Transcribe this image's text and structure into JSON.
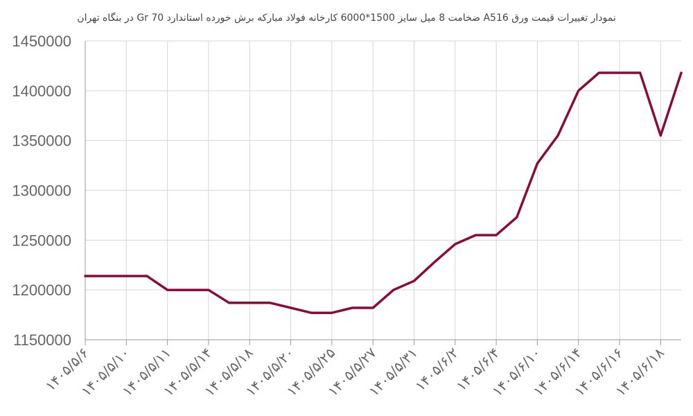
{
  "chart_data": {
    "type": "line",
    "title": "نمودار تغییرات قیمت ورق A516 ضخامت 8 میل سایز 1500*6000 کارخانه فولاد مبارکه برش خورده استاندارد Gr 70 در بنگاه تهران",
    "xlabel": "",
    "ylabel": "",
    "ylim": [
      1150000,
      1450000
    ],
    "yticks": [
      1150000,
      1200000,
      1250000,
      1300000,
      1350000,
      1400000,
      1450000
    ],
    "y_tick_labels": [
      "1150000",
      "1200000",
      "1250000",
      "1300000",
      "1350000",
      "1400000",
      "1450000"
    ],
    "x_tick_labels": [
      "۱۴۰۵/۵/۶",
      "۱۴۰۵/۵/۱۰",
      "۱۴۰۵/۵/۱۱",
      "۱۴۰۵/۵/۱۴",
      "۱۴۰۵/۵/۱۸",
      "۱۴۰۵/۵/۲۰",
      "۱۴۰۵/۵/۲۵",
      "۱۴۰۵/۵/۲۷",
      "۱۴۰۵/۵/۳۱",
      "۱۴۰۵/۶/۲",
      "۱۴۰۵/۶/۴",
      "۱۴۰۵/۶/۱۰",
      "۱۴۰۵/۶/۱۴",
      "۱۴۰۵/۶/۱۶",
      "۱۴۰۵/۶/۱۸"
    ],
    "x_tick_every": 2,
    "grid": true,
    "legend": "none",
    "series": [
      {
        "color": "#8b0a3a",
        "values": [
          1214000,
          1214000,
          1214000,
          1214000,
          1200000,
          1200000,
          1200000,
          1187000,
          1187000,
          1187000,
          1182000,
          1177000,
          1177000,
          1182000,
          1182000,
          1200000,
          1209000,
          1228000,
          1246000,
          1255000,
          1255000,
          1273000,
          1327000,
          1355000,
          1400000,
          1418000,
          1418000,
          1418000,
          1355000,
          1418000
        ]
      }
    ]
  }
}
